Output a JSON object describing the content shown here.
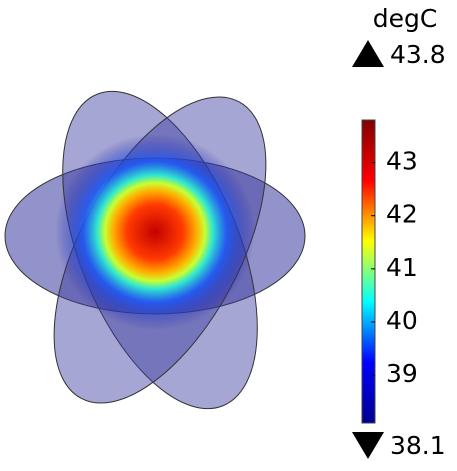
{
  "chart_data": {
    "type": "surface",
    "unit": "degC",
    "max": 43.8,
    "min": 38.1,
    "clim": [
      38.1,
      43.8
    ],
    "cticks": [
      39,
      40,
      41,
      42,
      43
    ],
    "colormap": [
      "#00008f",
      "#0000ff",
      "#00ffff",
      "#ffff00",
      "#ff0000",
      "#800000"
    ]
  }
}
